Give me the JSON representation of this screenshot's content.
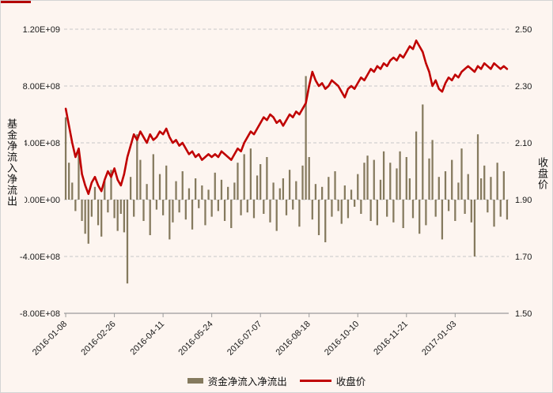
{
  "figure": {
    "artifact_color": "#b30000"
  },
  "chart_data": {
    "type": "combo",
    "title": "",
    "x_tick_labels": [
      "2016-01-08",
      "2016-02-26",
      "2016-04-11",
      "2016-05-24",
      "2016-07-07",
      "2016-08-18",
      "2016-10-10",
      "2016-11-21",
      "2017-01-03"
    ],
    "x_tick_indices": [
      0,
      15,
      30,
      45,
      60,
      75,
      90,
      105,
      120
    ],
    "left_axis": {
      "title": "基金净流入净流出",
      "min": -800000000.0,
      "max": 1200000000.0,
      "tick_values": [
        1200000000.0,
        800000000.0,
        400000000.0,
        0,
        -400000000.0,
        -800000000.0
      ],
      "tick_labels": [
        "1.20E+09",
        "8.00E+08",
        "4.00E+08",
        "0.00E+00",
        "-4.00E+08",
        "-8.00E+08"
      ]
    },
    "right_axis": {
      "title": "收盘价",
      "min": 1.5,
      "max": 2.5,
      "tick_values": [
        2.5,
        2.3,
        2.1,
        1.9,
        1.7,
        1.5
      ],
      "tick_labels": [
        "2.50",
        "2.30",
        "2.10",
        "1.90",
        "1.70",
        "1.50"
      ]
    },
    "grid": {
      "color": "#c8c8c8",
      "dash": "4 3",
      "axis_color": "#9b9b9b",
      "text_color": "#1a1a1a"
    },
    "series": [
      {
        "name": "资金净流入净流出",
        "type": "bar",
        "axis": "left",
        "color": "#857a5e",
        "values": [
          580000000.0,
          260000000.0,
          120000000.0,
          -80000000.0,
          340000000.0,
          -150000000.0,
          -240000000.0,
          -310000000.0,
          -120000000.0,
          90000000.0,
          -180000000.0,
          -260000000.0,
          140000000.0,
          -90000000.0,
          210000000.0,
          -130000000.0,
          -220000000.0,
          -100000000.0,
          -230000000.0,
          -590000000.0,
          160000000.0,
          -120000000.0,
          460000000.0,
          280000000.0,
          -150000000.0,
          110000000.0,
          -250000000.0,
          320000000.0,
          -70000000.0,
          180000000.0,
          -110000000.0,
          240000000.0,
          -280000000.0,
          -160000000.0,
          130000000.0,
          -90000000.0,
          200000000.0,
          -140000000.0,
          80000000.0,
          -210000000.0,
          150000000.0,
          -60000000.0,
          100000000.0,
          -180000000.0,
          70000000.0,
          -120000000.0,
          190000000.0,
          -80000000.0,
          140000000.0,
          -150000000.0,
          90000000.0,
          -200000000.0,
          120000000.0,
          260000000.0,
          -110000000.0,
          320000000.0,
          -90000000.0,
          360000000.0,
          -130000000.0,
          170000000.0,
          250000000.0,
          -100000000.0,
          300000000.0,
          -160000000.0,
          120000000.0,
          -220000000.0,
          80000000.0,
          150000000.0,
          -110000000.0,
          210000000.0,
          -70000000.0,
          130000000.0,
          -190000000.0,
          240000000.0,
          870000000.0,
          300000000.0,
          -140000000.0,
          110000000.0,
          -250000000.0,
          90000000.0,
          -300000000.0,
          160000000.0,
          -120000000.0,
          200000000.0,
          -80000000.0,
          -170000000.0,
          100000000.0,
          -130000000.0,
          70000000.0,
          -50000000.0,
          180000000.0,
          -100000000.0,
          260000000.0,
          310000000.0,
          -150000000.0,
          280000000.0,
          -180000000.0,
          140000000.0,
          340000000.0,
          -120000000.0,
          260000000.0,
          -160000000.0,
          220000000.0,
          340000000.0,
          -200000000.0,
          300000000.0,
          150000000.0,
          -130000000.0,
          480000000.0,
          -240000000.0,
          670000000.0,
          -180000000.0,
          290000000.0,
          420000000.0,
          -120000000.0,
          160000000.0,
          -280000000.0,
          200000000.0,
          -80000000.0,
          280000000.0,
          -150000000.0,
          120000000.0,
          360000000.0,
          -100000000.0,
          180000000.0,
          -160000000.0,
          -400000000.0,
          460000000.0,
          150000000.0,
          240000000.0,
          -90000000.0,
          160000000.0,
          -190000000.0,
          260000000.0,
          -120000000.0,
          200000000.0,
          -140000000.0
        ]
      },
      {
        "name": "收盘价",
        "type": "line",
        "axis": "right",
        "color": "#c00000",
        "width": 2.6,
        "values": [
          2.22,
          2.16,
          2.1,
          2.05,
          2.08,
          1.99,
          1.95,
          1.92,
          1.96,
          1.98,
          1.95,
          1.93,
          1.97,
          2.0,
          1.98,
          2.01,
          1.97,
          1.95,
          1.99,
          2.05,
          2.09,
          2.13,
          2.11,
          2.14,
          2.12,
          2.1,
          2.13,
          2.11,
          2.12,
          2.14,
          2.13,
          2.15,
          2.12,
          2.1,
          2.11,
          2.09,
          2.1,
          2.08,
          2.06,
          2.07,
          2.05,
          2.06,
          2.04,
          2.05,
          2.06,
          2.05,
          2.06,
          2.05,
          2.07,
          2.06,
          2.05,
          2.04,
          2.06,
          2.08,
          2.07,
          2.1,
          2.12,
          2.14,
          2.13,
          2.15,
          2.17,
          2.19,
          2.18,
          2.2,
          2.19,
          2.17,
          2.18,
          2.16,
          2.18,
          2.2,
          2.19,
          2.21,
          2.2,
          2.22,
          2.24,
          2.3,
          2.35,
          2.32,
          2.3,
          2.31,
          2.29,
          2.3,
          2.32,
          2.31,
          2.3,
          2.28,
          2.26,
          2.29,
          2.3,
          2.29,
          2.31,
          2.33,
          2.32,
          2.34,
          2.36,
          2.35,
          2.37,
          2.36,
          2.38,
          2.37,
          2.39,
          2.4,
          2.39,
          2.41,
          2.4,
          2.42,
          2.44,
          2.43,
          2.46,
          2.44,
          2.42,
          2.38,
          2.35,
          2.3,
          2.32,
          2.29,
          2.28,
          2.31,
          2.33,
          2.32,
          2.34,
          2.33,
          2.35,
          2.36,
          2.37,
          2.36,
          2.35,
          2.37,
          2.36,
          2.38,
          2.37,
          2.36,
          2.38,
          2.37,
          2.36,
          2.37,
          2.36
        ]
      }
    ],
    "legend": [
      "资金净流入净流出",
      "收盘价"
    ],
    "legend_position": "bottom"
  }
}
